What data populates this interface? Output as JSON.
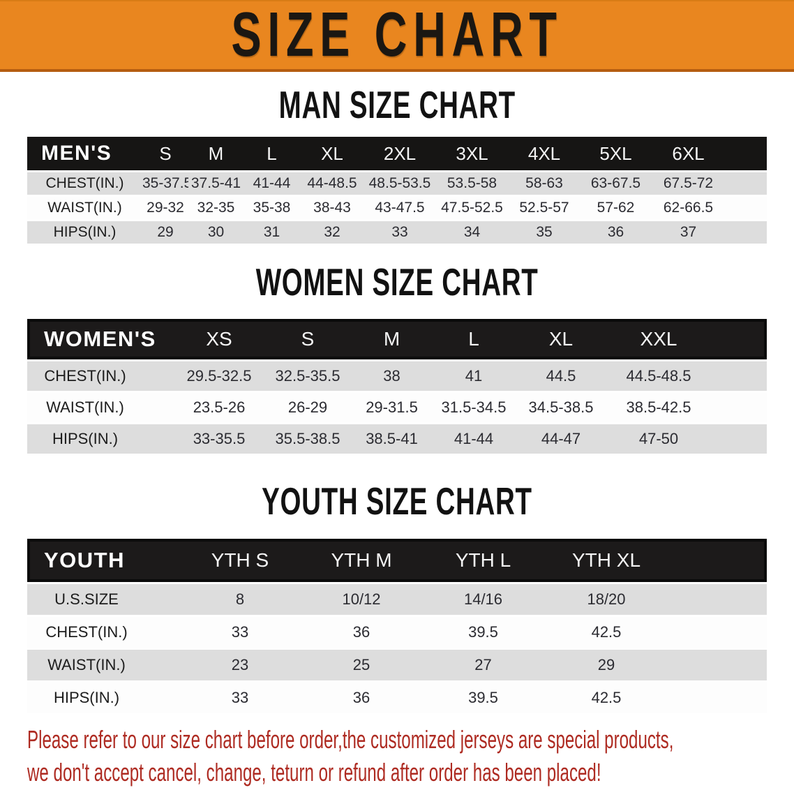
{
  "banner": {
    "title": "SIZE CHART",
    "bg_color": "#E9861F",
    "text_color": "#1B1712"
  },
  "sections": [
    {
      "heading": "MAN SIZE CHART",
      "table": {
        "header_label": "MEN'S",
        "columns": [
          "S",
          "M",
          "L",
          "XL",
          "2XL",
          "3XL",
          "4XL",
          "5XL",
          "6XL"
        ],
        "rows": [
          {
            "label": "CHEST(IN.)",
            "values": [
              "35-37.5",
              "37.5-41",
              "41-44",
              "44-48.5",
              "48.5-53.5",
              "53.5-58",
              "58-63",
              "63-67.5",
              "67.5-72"
            ]
          },
          {
            "label": "WAIST(IN.)",
            "values": [
              "29-32",
              "32-35",
              "35-38",
              "38-43",
              "43-47.5",
              "47.5-52.5",
              "52.5-57",
              "57-62",
              "62-66.5"
            ]
          },
          {
            "label": "HIPS(IN.)",
            "values": [
              "29",
              "30",
              "31",
              "32",
              "33",
              "34",
              "35",
              "36",
              "37"
            ]
          }
        ]
      }
    },
    {
      "heading": "WOMEN SIZE CHART",
      "table": {
        "header_label": "WOMEN'S",
        "columns": [
          "XS",
          "S",
          "M",
          "L",
          "XL",
          "XXL"
        ],
        "rows": [
          {
            "label": "CHEST(IN.)",
            "values": [
              "29.5-32.5",
              "32.5-35.5",
              "38",
              "41",
              "44.5",
              "44.5-48.5"
            ]
          },
          {
            "label": "WAIST(IN.)",
            "values": [
              "23.5-26",
              "26-29",
              "29-31.5",
              "31.5-34.5",
              "34.5-38.5",
              "38.5-42.5"
            ]
          },
          {
            "label": "HIPS(IN.)",
            "values": [
              "33-35.5",
              "35.5-38.5",
              "38.5-41",
              "41-44",
              "44-47",
              "47-50"
            ]
          }
        ]
      }
    },
    {
      "heading": "YOUTH SIZE CHART",
      "table": {
        "header_label": "YOUTH",
        "columns": [
          "YTH S",
          "YTH M",
          "YTH L",
          "YTH XL"
        ],
        "rows": [
          {
            "label": "U.S.SIZE",
            "values": [
              "8",
              "10/12",
              "14/16",
              "18/20"
            ]
          },
          {
            "label": "CHEST(IN.)",
            "values": [
              "33",
              "36",
              "39.5",
              "42.5"
            ]
          },
          {
            "label": "WAIST(IN.)",
            "values": [
              "23",
              "25",
              "27",
              "29"
            ]
          },
          {
            "label": "HIPS(IN.)",
            "values": [
              "33",
              "36",
              "39.5",
              "42.5"
            ]
          }
        ]
      }
    }
  ],
  "footer_note": {
    "line1": "Please refer to our size chart before order,the customized jerseys are special products,",
    "line2": "we don't accept cancel, change, teturn or refund after order has been placed!",
    "text_color": "#AE2B22"
  },
  "style_colors": {
    "header_bar": "#1A1A1A",
    "stripe_gray": "#DDDDDD",
    "stripe_white": "#FDFDFD"
  }
}
